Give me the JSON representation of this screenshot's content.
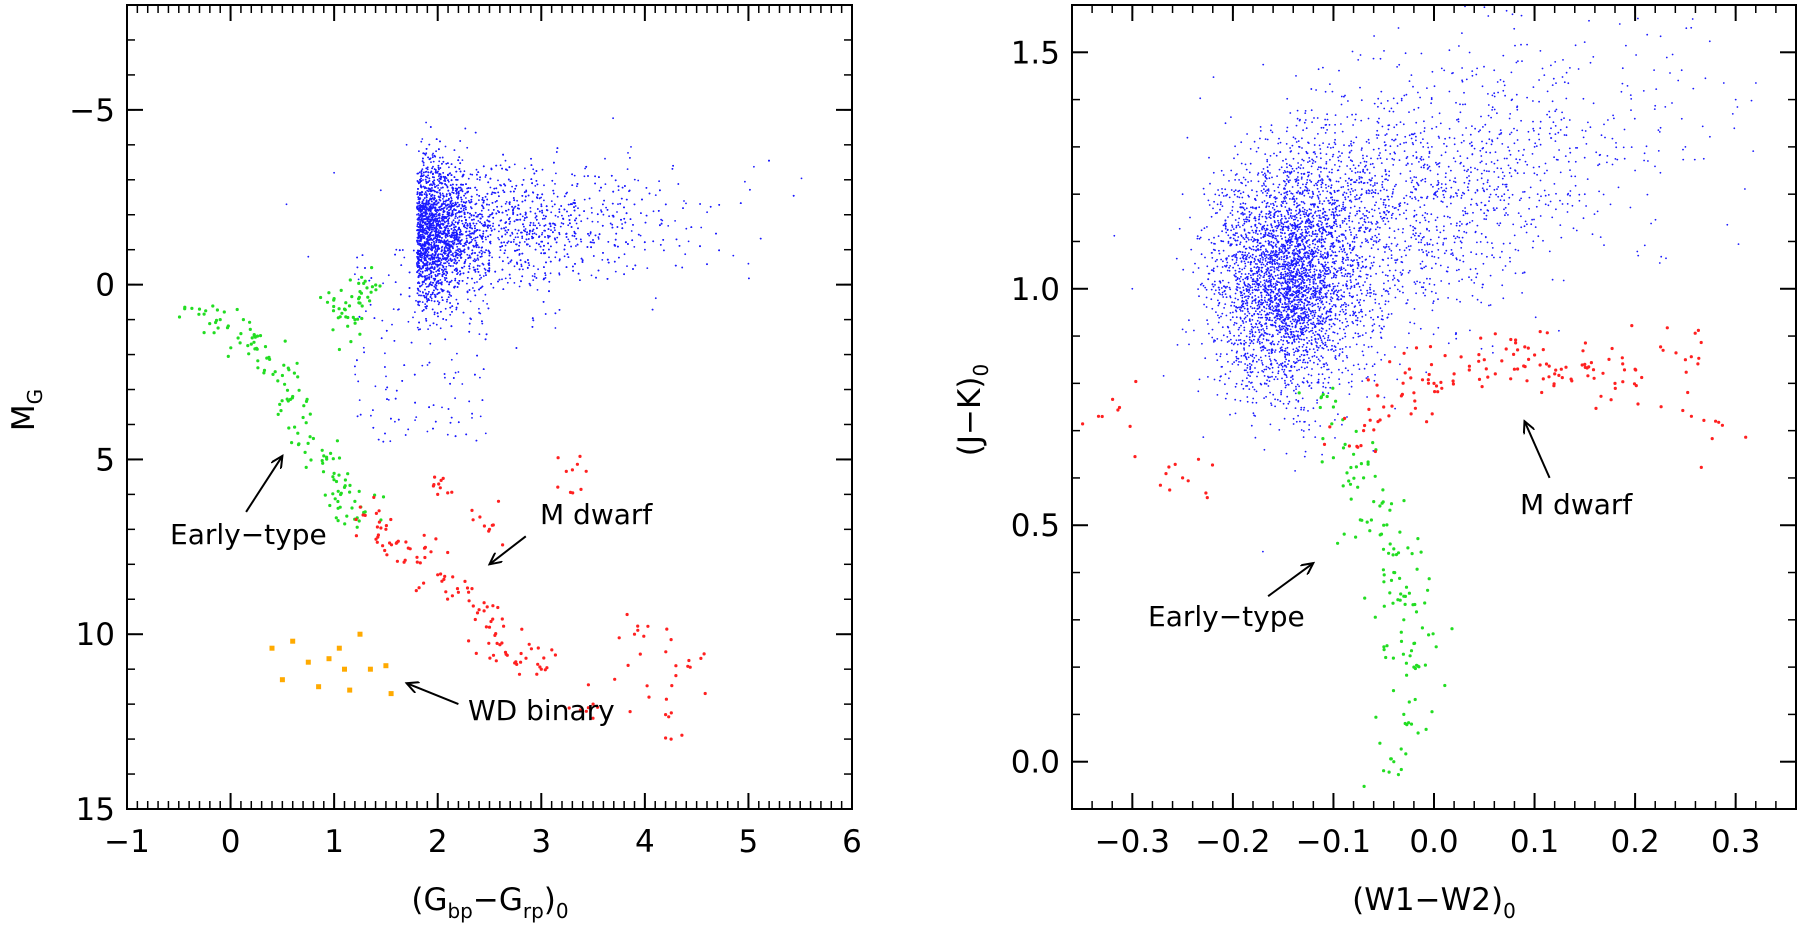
{
  "chart_data": [
    {
      "type": "scatter",
      "panel": "left",
      "xlabel": "(G bp−G rp)0",
      "xlabel_parts": {
        "open": "(G",
        "s1": "bp",
        "mid": "−G",
        "s2": "rp",
        "close": ")",
        "s3": "0"
      },
      "ylabel": "MG",
      "ylabel_parts": {
        "main": "M",
        "sub": "G"
      },
      "xlim": [
        -1,
        6
      ],
      "ylim": [
        15,
        -8
      ],
      "y_inverted": true,
      "x_ticks": [
        -1,
        0,
        1,
        2,
        3,
        4,
        5,
        6
      ],
      "x_tick_labels": [
        "−1",
        "0",
        "1",
        "2",
        "3",
        "4",
        "5",
        "6"
      ],
      "y_ticks": [
        -5,
        0,
        5,
        10,
        15
      ],
      "y_tick_labels": [
        "−5",
        "0",
        "5",
        "10",
        "15"
      ],
      "series": [
        {
          "color": "#1a1aff",
          "note": "giant-like cloud",
          "center": [
            1.9,
            -1.5
          ],
          "spread": [
            0.9,
            2.2
          ],
          "points": [
            [
              0.54,
              -2.3
            ],
            [
              0.75,
              -0.8
            ],
            [
              1.0,
              -3.2
            ],
            [
              1.2,
              -0.3
            ],
            [
              1.45,
              -2.7
            ],
            [
              1.6,
              -1.0
            ],
            [
              1.7,
              -4.0
            ],
            [
              1.8,
              -2.0
            ],
            [
              1.9,
              -0.5
            ],
            [
              2.0,
              -3.0
            ],
            [
              2.1,
              -1.6
            ],
            [
              2.3,
              -2.4
            ],
            [
              2.5,
              -0.9
            ],
            [
              2.7,
              -1.8
            ],
            [
              3.0,
              -2.3
            ],
            [
              3.3,
              -1.4
            ],
            [
              3.6,
              -2.0
            ],
            [
              4.0,
              -1.0
            ],
            [
              4.4,
              -1.6
            ],
            [
              5.0,
              -0.6
            ],
            [
              1.5,
              3.0
            ],
            [
              1.9,
              4.2
            ],
            [
              2.2,
              2.5
            ]
          ]
        },
        {
          "color": "#22dd22",
          "label": "Early−type",
          "points": [
            [
              -0.3,
              0.7
            ],
            [
              -0.1,
              1.0
            ],
            [
              0.1,
              1.4
            ],
            [
              0.2,
              1.7
            ],
            [
              0.35,
              2.1
            ],
            [
              0.5,
              2.6
            ],
            [
              0.6,
              3.2
            ],
            [
              0.7,
              3.8
            ],
            [
              0.8,
              4.4
            ],
            [
              0.9,
              4.9
            ],
            [
              1.0,
              5.4
            ],
            [
              1.1,
              5.8
            ],
            [
              1.2,
              6.2
            ],
            [
              1.3,
              6.5
            ],
            [
              1.0,
              0.4
            ],
            [
              1.1,
              0.7
            ],
            [
              1.2,
              1.0
            ],
            [
              1.25,
              0.2
            ],
            [
              1.3,
              -0.1
            ]
          ]
        },
        {
          "color": "#ff2020",
          "label": "M dwarf",
          "points": [
            [
              1.3,
              6.6
            ],
            [
              1.5,
              7.0
            ],
            [
              1.6,
              7.4
            ],
            [
              1.8,
              7.8
            ],
            [
              2.0,
              8.3
            ],
            [
              2.2,
              8.8
            ],
            [
              2.4,
              9.3
            ],
            [
              2.5,
              9.8
            ],
            [
              2.6,
              10.3
            ],
            [
              2.8,
              10.8
            ],
            [
              3.0,
              11.0
            ],
            [
              2.0,
              6.0
            ],
            [
              2.5,
              7.0
            ],
            [
              3.5,
              12.0
            ],
            [
              3.9,
              10.0
            ],
            [
              4.3,
              10.9
            ],
            [
              4.2,
              12.3
            ],
            [
              3.3,
              5.3
            ]
          ]
        },
        {
          "color": "#ffaa00",
          "label": "WD binary",
          "points": [
            [
              0.4,
              10.4
            ],
            [
              0.5,
              11.3
            ],
            [
              0.6,
              10.2
            ],
            [
              0.75,
              10.8
            ],
            [
              0.85,
              11.5
            ],
            [
              0.95,
              10.7
            ],
            [
              1.05,
              10.4
            ],
            [
              1.1,
              11.0
            ],
            [
              1.15,
              11.6
            ],
            [
              1.25,
              10.0
            ],
            [
              1.35,
              11.0
            ],
            [
              1.5,
              10.9
            ],
            [
              1.55,
              11.7
            ]
          ]
        }
      ],
      "annotations": [
        {
          "text": "Early−type",
          "arrow_to": [
            0.5,
            4.9
          ],
          "arrow_from": [
            0.15,
            6.5
          ]
        },
        {
          "text": "M dwarf",
          "arrow_to": [
            2.5,
            8.0
          ],
          "arrow_from": [
            2.85,
            7.2
          ]
        },
        {
          "text": "WD binary",
          "arrow_to": [
            1.7,
            11.4
          ],
          "arrow_from": [
            2.2,
            12.0
          ]
        }
      ]
    },
    {
      "type": "scatter",
      "panel": "right",
      "xlabel": "(W1−W2)0",
      "xlabel_parts": {
        "main": "(W1−W2)",
        "sub": "0"
      },
      "ylabel": "(J−K)0",
      "ylabel_parts": {
        "main": "(J−K)",
        "sub": "0"
      },
      "xlim": [
        -0.36,
        0.36
      ],
      "ylim": [
        -0.1,
        1.6
      ],
      "x_ticks": [
        -0.3,
        -0.2,
        -0.1,
        0.0,
        0.1,
        0.2,
        0.3
      ],
      "x_tick_labels": [
        "−0.3",
        "−0.2",
        "−0.1",
        "0.0",
        "0.1",
        "0.2",
        "0.3"
      ],
      "y_ticks": [
        0.0,
        0.5,
        1.0,
        1.5
      ],
      "y_tick_labels": [
        "0.0",
        "0.5",
        "1.0",
        "1.5"
      ],
      "series": [
        {
          "color": "#1a1aff",
          "note": "giant-like cloud",
          "center": [
            -0.15,
            1.02
          ],
          "spread": [
            0.05,
            0.14
          ],
          "points": [
            [
              -0.3,
              1.0
            ],
            [
              -0.25,
              1.2
            ],
            [
              -0.2,
              0.95
            ],
            [
              -0.18,
              1.1
            ],
            [
              -0.16,
              0.9
            ],
            [
              -0.14,
              1.05
            ],
            [
              -0.12,
              1.2
            ],
            [
              -0.1,
              1.0
            ],
            [
              -0.05,
              1.15
            ],
            [
              0.0,
              1.2
            ],
            [
              0.05,
              1.25
            ],
            [
              0.1,
              1.3
            ],
            [
              0.15,
              1.2
            ],
            [
              0.2,
              1.25
            ],
            [
              0.25,
              1.3
            ],
            [
              0.3,
              1.4
            ]
          ]
        },
        {
          "color": "#22dd22",
          "label": "Early−type",
          "points": [
            [
              -0.1,
              0.75
            ],
            [
              -0.08,
              0.65
            ],
            [
              -0.07,
              0.6
            ],
            [
              -0.06,
              0.55
            ],
            [
              -0.05,
              0.5
            ],
            [
              -0.04,
              0.45
            ],
            [
              -0.04,
              0.4
            ],
            [
              -0.03,
              0.35
            ],
            [
              -0.03,
              0.3
            ],
            [
              -0.02,
              0.25
            ],
            [
              -0.02,
              0.2
            ],
            [
              -0.03,
              0.1
            ],
            [
              -0.04,
              0.0
            ]
          ]
        },
        {
          "color": "#ff2020",
          "label": "M dwarf",
          "points": [
            [
              -0.07,
              0.7
            ],
            [
              -0.05,
              0.75
            ],
            [
              -0.02,
              0.78
            ],
            [
              0.0,
              0.8
            ],
            [
              0.02,
              0.82
            ],
            [
              0.05,
              0.85
            ],
            [
              0.08,
              0.83
            ],
            [
              0.1,
              0.86
            ],
            [
              0.12,
              0.82
            ],
            [
              0.15,
              0.84
            ],
            [
              0.18,
              0.8
            ],
            [
              0.2,
              0.83
            ],
            [
              0.25,
              0.85
            ],
            [
              0.28,
              0.72
            ],
            [
              -0.33,
              0.73
            ],
            [
              -0.25,
              0.6
            ]
          ]
        }
      ],
      "annotations": [
        {
          "text": "M dwarf",
          "arrow_to": [
            0.09,
            0.72
          ],
          "arrow_from": [
            0.115,
            0.6
          ]
        },
        {
          "text": "Early−type",
          "arrow_to": [
            -0.12,
            0.42
          ],
          "arrow_from": [
            -0.165,
            0.35
          ]
        }
      ]
    }
  ]
}
